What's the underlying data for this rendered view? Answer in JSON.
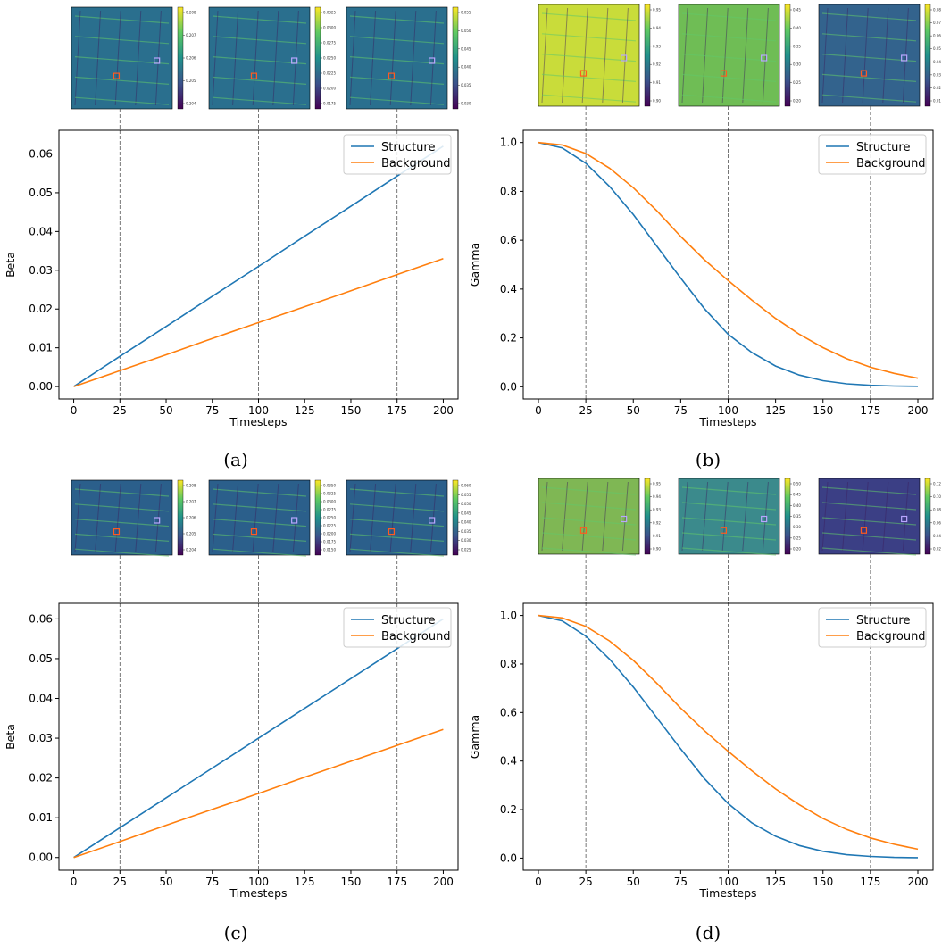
{
  "colors": {
    "structure": "#1f77b4",
    "background": "#ff7f0e",
    "guide": "#555555"
  },
  "chart_data": [
    {
      "id": "a",
      "type": "line",
      "caption": "(a)",
      "xlabel": "Timesteps",
      "ylabel": "Beta",
      "xlim": [
        -8,
        208
      ],
      "ylim": [
        -0.0032,
        0.0661
      ],
      "xticks": [
        0,
        25,
        50,
        75,
        100,
        125,
        150,
        175,
        200
      ],
      "xtick_labels": [
        "0",
        "25",
        "50",
        "75",
        "100",
        "125",
        "150",
        "175",
        "200"
      ],
      "yticks": [
        0.0,
        0.01,
        0.02,
        0.03,
        0.04,
        0.05,
        0.06
      ],
      "ytick_labels": [
        "0.00",
        "0.01",
        "0.02",
        "0.03",
        "0.04",
        "0.05",
        "0.06"
      ],
      "grid": false,
      "legend_position": "top-right",
      "vlines": [
        25,
        100,
        175
      ],
      "series": [
        {
          "name": "Structure",
          "x": [
            0,
            25,
            50,
            75,
            100,
            125,
            150,
            175,
            200
          ],
          "y": [
            0.0,
            0.0078,
            0.0155,
            0.0233,
            0.031,
            0.0388,
            0.0465,
            0.0543,
            0.062
          ]
        },
        {
          "name": "Background",
          "x": [
            0,
            25,
            50,
            75,
            100,
            125,
            150,
            175,
            200
          ],
          "y": [
            0.0,
            0.0041,
            0.0082,
            0.0124,
            0.0165,
            0.0206,
            0.0247,
            0.0289,
            0.033
          ]
        }
      ],
      "inset_colorbars": [
        [
          "0.208",
          "0.207",
          "0.206",
          "0.205",
          "0.204"
        ],
        [
          "0.0325",
          "0.0300",
          "0.0275",
          "0.0250",
          "0.0225",
          "0.0200",
          "0.0175"
        ],
        [
          "0.055",
          "0.050",
          "0.045",
          "0.040",
          "0.035",
          "0.030"
        ]
      ]
    },
    {
      "id": "b",
      "type": "line",
      "caption": "(b)",
      "xlabel": "Timesteps",
      "ylabel": "Gamma",
      "xlim": [
        -8,
        208
      ],
      "ylim": [
        -0.05,
        1.05
      ],
      "xticks": [
        0,
        25,
        50,
        75,
        100,
        125,
        150,
        175,
        200
      ],
      "xtick_labels": [
        "0",
        "25",
        "50",
        "75",
        "100",
        "125",
        "150",
        "175",
        "200"
      ],
      "yticks": [
        0.0,
        0.2,
        0.4,
        0.6,
        0.8,
        1.0
      ],
      "ytick_labels": [
        "0.0",
        "0.2",
        "0.4",
        "0.6",
        "0.8",
        "1.0"
      ],
      "grid": false,
      "legend_position": "top-right",
      "vlines": [
        25,
        100,
        175
      ],
      "series": [
        {
          "name": "Structure",
          "x": [
            0,
            12.5,
            25,
            37.5,
            50,
            62.5,
            75,
            87.5,
            100,
            112.5,
            125,
            137.5,
            150,
            162.5,
            175,
            187.5,
            200
          ],
          "y": [
            1.0,
            0.978,
            0.915,
            0.82,
            0.705,
            0.575,
            0.445,
            0.32,
            0.215,
            0.14,
            0.085,
            0.048,
            0.025,
            0.012,
            0.006,
            0.003,
            0.002
          ]
        },
        {
          "name": "Background",
          "x": [
            0,
            12.5,
            25,
            37.5,
            50,
            62.5,
            75,
            87.5,
            100,
            112.5,
            125,
            137.5,
            150,
            162.5,
            175,
            187.5,
            200
          ],
          "y": [
            1.0,
            0.99,
            0.955,
            0.895,
            0.815,
            0.72,
            0.615,
            0.52,
            0.435,
            0.355,
            0.28,
            0.215,
            0.16,
            0.115,
            0.08,
            0.055,
            0.035
          ]
        }
      ],
      "inset_colorbars": [
        [
          "0.95",
          "0.94",
          "0.93",
          "0.92",
          "0.91",
          "0.90"
        ],
        [
          "0.45",
          "0.40",
          "0.35",
          "0.30",
          "0.25",
          "0.20"
        ],
        [
          "0.08",
          "0.07",
          "0.06",
          "0.05",
          "0.04",
          "0.03",
          "0.02",
          "0.01"
        ]
      ]
    },
    {
      "id": "c",
      "type": "line",
      "caption": "(c)",
      "xlabel": "Timesteps",
      "ylabel": "Beta",
      "xlim": [
        -8,
        208
      ],
      "ylim": [
        -0.0032,
        0.0639
      ],
      "xticks": [
        0,
        25,
        50,
        75,
        100,
        125,
        150,
        175,
        200
      ],
      "xtick_labels": [
        "0",
        "25",
        "50",
        "75",
        "100",
        "125",
        "150",
        "175",
        "200"
      ],
      "yticks": [
        0.0,
        0.01,
        0.02,
        0.03,
        0.04,
        0.05,
        0.06
      ],
      "ytick_labels": [
        "0.00",
        "0.01",
        "0.02",
        "0.03",
        "0.04",
        "0.05",
        "0.06"
      ],
      "grid": false,
      "legend_position": "top-right",
      "vlines": [
        25,
        100,
        175
      ],
      "series": [
        {
          "name": "Structure",
          "x": [
            0,
            25,
            50,
            75,
            100,
            125,
            150,
            175,
            200
          ],
          "y": [
            0.0,
            0.0075,
            0.015,
            0.0225,
            0.03,
            0.0375,
            0.045,
            0.0525,
            0.06
          ]
        },
        {
          "name": "Background",
          "x": [
            0,
            25,
            50,
            75,
            100,
            125,
            150,
            175,
            200
          ],
          "y": [
            0.0,
            0.004,
            0.0081,
            0.0121,
            0.0161,
            0.0202,
            0.0242,
            0.0282,
            0.0322
          ]
        }
      ],
      "inset_colorbars": [
        [
          "0.208",
          "0.207",
          "0.206",
          "0.205",
          "0.204"
        ],
        [
          "0.0350",
          "0.0325",
          "0.0300",
          "0.0275",
          "0.0250",
          "0.0225",
          "0.0200",
          "0.0175",
          "0.0150"
        ],
        [
          "0.060",
          "0.055",
          "0.050",
          "0.045",
          "0.040",
          "0.035",
          "0.030",
          "0.025"
        ]
      ]
    },
    {
      "id": "d",
      "type": "line",
      "caption": "(d)",
      "xlabel": "Timesteps",
      "ylabel": "Gamma",
      "xlim": [
        -8,
        208
      ],
      "ylim": [
        -0.05,
        1.05
      ],
      "xticks": [
        0,
        25,
        50,
        75,
        100,
        125,
        150,
        175,
        200
      ],
      "xtick_labels": [
        "0",
        "25",
        "50",
        "75",
        "100",
        "125",
        "150",
        "175",
        "200"
      ],
      "yticks": [
        0.0,
        0.2,
        0.4,
        0.6,
        0.8,
        1.0
      ],
      "ytick_labels": [
        "0.0",
        "0.2",
        "0.4",
        "0.6",
        "0.8",
        "1.0"
      ],
      "grid": false,
      "legend_position": "top-right",
      "vlines": [
        25,
        100,
        175
      ],
      "series": [
        {
          "name": "Structure",
          "x": [
            0,
            12.5,
            25,
            37.5,
            50,
            62.5,
            75,
            87.5,
            100,
            112.5,
            125,
            137.5,
            150,
            162.5,
            175,
            187.5,
            200
          ],
          "y": [
            1.0,
            0.978,
            0.915,
            0.82,
            0.705,
            0.578,
            0.45,
            0.328,
            0.225,
            0.145,
            0.09,
            0.052,
            0.028,
            0.014,
            0.007,
            0.003,
            0.002
          ]
        },
        {
          "name": "Background",
          "x": [
            0,
            12.5,
            25,
            37.5,
            50,
            62.5,
            75,
            87.5,
            100,
            112.5,
            125,
            137.5,
            150,
            162.5,
            175,
            187.5,
            200
          ],
          "y": [
            1.0,
            0.99,
            0.955,
            0.895,
            0.815,
            0.72,
            0.618,
            0.525,
            0.44,
            0.36,
            0.285,
            0.22,
            0.163,
            0.118,
            0.083,
            0.057,
            0.037
          ]
        }
      ],
      "inset_colorbars": [
        [
          "0.95",
          "0.94",
          "0.93",
          "0.92",
          "0.91",
          "0.90"
        ],
        [
          "0.50",
          "0.45",
          "0.40",
          "0.35",
          "0.30",
          "0.25",
          "0.20"
        ],
        [
          "0.12",
          "0.10",
          "0.08",
          "0.06",
          "0.04",
          "0.02"
        ]
      ]
    }
  ]
}
